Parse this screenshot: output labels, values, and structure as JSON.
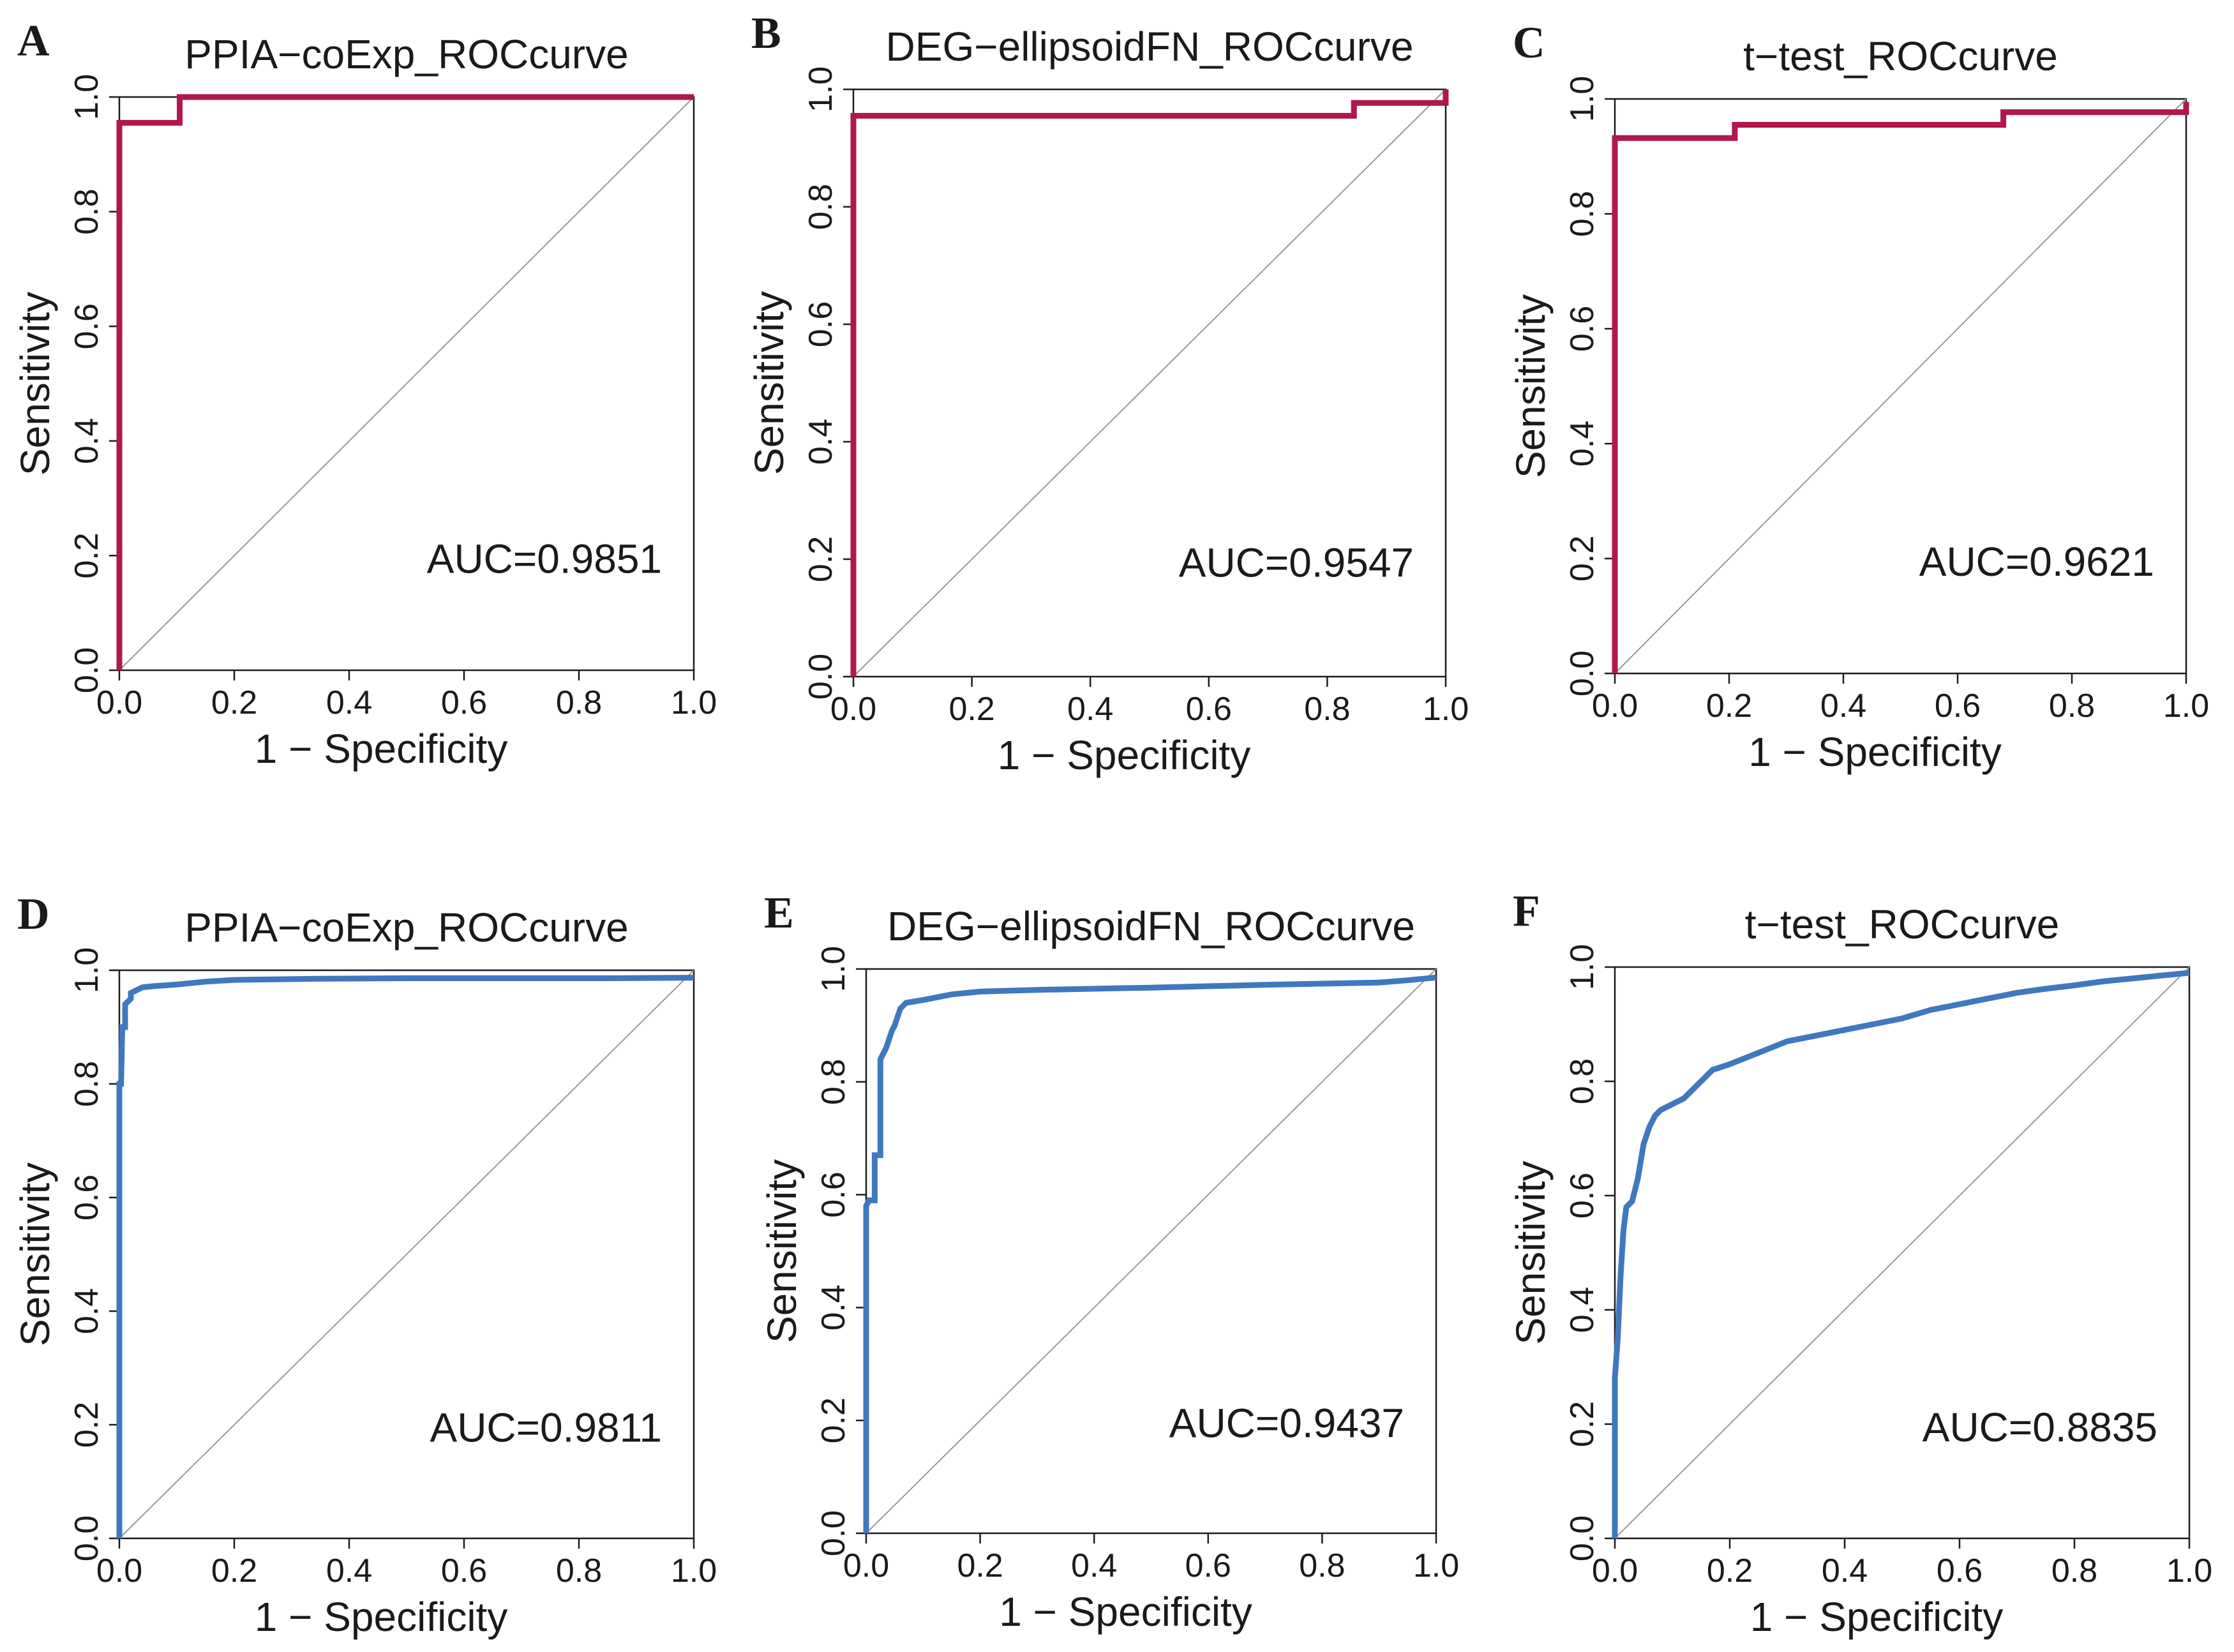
{
  "colors": {
    "red": "#b0184a",
    "blue": "#3f78bf",
    "diagonal": "#9a9a9a",
    "axis": "#1a1a1a"
  },
  "chart_data": [
    {
      "panel": "A",
      "type": "line",
      "title": "PPIA−coExp_ROCcurve",
      "xlabel": "1 − Specificity",
      "ylabel": "Sensitivity",
      "xlim": [
        0,
        1
      ],
      "ylim": [
        0,
        1
      ],
      "xticks": [
        "0.0",
        "0.2",
        "0.4",
        "0.6",
        "0.8",
        "1.0"
      ],
      "yticks": [
        "0.0",
        "0.2",
        "0.4",
        "0.6",
        "0.8",
        "1.0"
      ],
      "auc_label": "AUC=0.9851",
      "color": "red",
      "step": true,
      "grid": false,
      "series": [
        {
          "name": "ROC",
          "x": [
            0,
            0,
            0.105,
            0.105,
            1.0
          ],
          "y": [
            0,
            0.955,
            0.955,
            1.0,
            1.0
          ]
        }
      ]
    },
    {
      "panel": "B",
      "type": "line",
      "title": "DEG−ellipsoidFN_ROCcurve",
      "xlabel": "1 − Specificity",
      "ylabel": "Sensitivity",
      "xlim": [
        0,
        1
      ],
      "ylim": [
        0,
        1
      ],
      "xticks": [
        "0.0",
        "0.2",
        "0.4",
        "0.6",
        "0.8",
        "1.0"
      ],
      "yticks": [
        "0.0",
        "0.2",
        "0.4",
        "0.6",
        "0.8",
        "1.0"
      ],
      "auc_label": "AUC=0.9547",
      "color": "red",
      "step": true,
      "grid": false,
      "series": [
        {
          "name": "ROC",
          "x": [
            0,
            0,
            0.845,
            0.845,
            1.0,
            1.0
          ],
          "y": [
            0,
            0.955,
            0.955,
            0.977,
            0.977,
            1.0
          ]
        }
      ]
    },
    {
      "panel": "C",
      "type": "line",
      "title": "t−test_ROCcurve",
      "xlabel": "1 − Specificity",
      "ylabel": "Sensitivity",
      "xlim": [
        0,
        1
      ],
      "ylim": [
        0,
        1
      ],
      "xticks": [
        "0.0",
        "0.2",
        "0.4",
        "0.6",
        "0.8",
        "1.0"
      ],
      "yticks": [
        "0.0",
        "0.2",
        "0.4",
        "0.6",
        "0.8",
        "1.0"
      ],
      "auc_label": "AUC=0.9621",
      "color": "red",
      "step": true,
      "grid": false,
      "series": [
        {
          "name": "ROC",
          "x": [
            0,
            0,
            0.21,
            0.21,
            0.68,
            0.68,
            1.0,
            1.0
          ],
          "y": [
            0,
            0.932,
            0.932,
            0.955,
            0.955,
            0.977,
            0.977,
            0.995
          ]
        }
      ]
    },
    {
      "panel": "D",
      "type": "line",
      "title": "PPIA−coExp_ROCcurve",
      "xlabel": "1 − Specificity",
      "ylabel": "Sensitivity",
      "xlim": [
        0,
        1
      ],
      "ylim": [
        0,
        1
      ],
      "xticks": [
        "0.0",
        "0.2",
        "0.4",
        "0.6",
        "0.8",
        "1.0"
      ],
      "yticks": [
        "0.0",
        "0.2",
        "0.4",
        "0.6",
        "0.8",
        "1.0"
      ],
      "auc_label": "AUC=0.9811",
      "color": "blue",
      "step": false,
      "grid": false,
      "series": [
        {
          "name": "ROC",
          "x": [
            0,
            0,
            0.003,
            0.005,
            0.01,
            0.01,
            0.02,
            0.02,
            0.03,
            0.04,
            0.06,
            0.1,
            0.15,
            0.2,
            0.35,
            0.5,
            0.7,
            0.85,
            1.0
          ],
          "y": [
            0,
            0.8,
            0.8,
            0.9,
            0.9,
            0.94,
            0.95,
            0.96,
            0.965,
            0.97,
            0.972,
            0.975,
            0.98,
            0.983,
            0.985,
            0.986,
            0.986,
            0.986,
            0.987
          ]
        }
      ]
    },
    {
      "panel": "E",
      "type": "line",
      "title": "DEG−ellipsoidFN_ROCcurve",
      "xlabel": "1 − Specificity",
      "ylabel": "Sensitivity",
      "xlim": [
        0,
        1
      ],
      "ylim": [
        0,
        1
      ],
      "xticks": [
        "0.0",
        "0.2",
        "0.4",
        "0.6",
        "0.8",
        "1.0"
      ],
      "yticks": [
        "0.0",
        "0.2",
        "0.4",
        "0.6",
        "0.8",
        "1.0"
      ],
      "auc_label": "AUC=0.9437",
      "color": "blue",
      "step": false,
      "grid": false,
      "series": [
        {
          "name": "ROC",
          "x": [
            0,
            0,
            0.005,
            0.015,
            0.015,
            0.025,
            0.025,
            0.035,
            0.045,
            0.05,
            0.06,
            0.07,
            0.1,
            0.15,
            0.2,
            0.3,
            0.5,
            0.7,
            0.9,
            0.95,
            1.0
          ],
          "y": [
            0,
            0.58,
            0.59,
            0.59,
            0.67,
            0.67,
            0.84,
            0.86,
            0.89,
            0.9,
            0.93,
            0.94,
            0.945,
            0.955,
            0.96,
            0.963,
            0.967,
            0.972,
            0.976,
            0.98,
            0.985
          ]
        }
      ]
    },
    {
      "panel": "F",
      "type": "line",
      "title": "t−test_ROCcurve",
      "xlabel": "1 − Specificity",
      "ylabel": "Sensitivity",
      "xlim": [
        0,
        1
      ],
      "ylim": [
        0,
        1
      ],
      "xticks": [
        "0.0",
        "0.2",
        "0.4",
        "0.6",
        "0.8",
        "1.0"
      ],
      "yticks": [
        "0.0",
        "0.2",
        "0.4",
        "0.6",
        "0.8",
        "1.0"
      ],
      "auc_label": "AUC=0.8835",
      "color": "blue",
      "step": false,
      "grid": false,
      "series": [
        {
          "name": "ROC",
          "x": [
            0,
            0,
            0.005,
            0.01,
            0.015,
            0.02,
            0.03,
            0.04,
            0.05,
            0.06,
            0.07,
            0.08,
            0.1,
            0.12,
            0.15,
            0.17,
            0.2,
            0.25,
            0.3,
            0.35,
            0.4,
            0.45,
            0.5,
            0.55,
            0.6,
            0.65,
            0.7,
            0.75,
            0.8,
            0.85,
            0.9,
            0.95,
            1.0
          ],
          "y": [
            0,
            0.28,
            0.35,
            0.46,
            0.54,
            0.58,
            0.59,
            0.63,
            0.69,
            0.72,
            0.74,
            0.75,
            0.76,
            0.77,
            0.8,
            0.82,
            0.83,
            0.85,
            0.87,
            0.88,
            0.89,
            0.9,
            0.91,
            0.925,
            0.935,
            0.945,
            0.955,
            0.962,
            0.968,
            0.975,
            0.98,
            0.985,
            0.99
          ]
        }
      ]
    }
  ]
}
